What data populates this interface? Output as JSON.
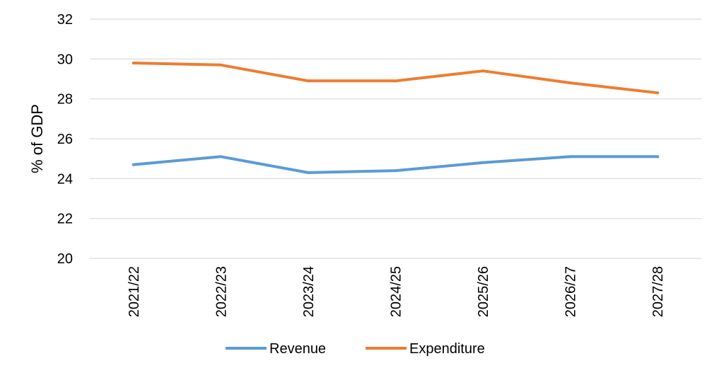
{
  "chart_data": {
    "type": "line",
    "title": "",
    "xlabel": "",
    "ylabel": "% of GDP",
    "ylim": [
      20,
      32
    ],
    "yticks": [
      20,
      22,
      24,
      26,
      28,
      30,
      32
    ],
    "grid": true,
    "legend_position": "bottom",
    "categories": [
      "2021/22",
      "2022/23",
      "2023/24",
      "2024/25",
      "2025/26",
      "2026/27",
      "2027/28"
    ],
    "series": [
      {
        "name": "Revenue",
        "color": "#5b9bd5",
        "values": [
          24.7,
          25.1,
          24.3,
          24.4,
          24.8,
          25.1,
          25.1
        ]
      },
      {
        "name": "Expenditure",
        "color": "#ed7d31",
        "values": [
          29.8,
          29.7,
          28.9,
          28.9,
          29.4,
          28.8,
          28.3
        ]
      }
    ]
  }
}
